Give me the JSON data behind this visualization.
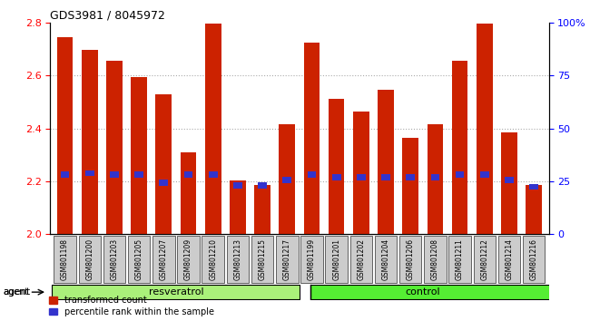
{
  "title": "GDS3981 / 8045972",
  "samples": [
    "GSM801198",
    "GSM801200",
    "GSM801203",
    "GSM801205",
    "GSM801207",
    "GSM801209",
    "GSM801210",
    "GSM801213",
    "GSM801215",
    "GSM801217",
    "GSM801199",
    "GSM801201",
    "GSM801202",
    "GSM801204",
    "GSM801206",
    "GSM801208",
    "GSM801211",
    "GSM801212",
    "GSM801214",
    "GSM801216"
  ],
  "red_values": [
    2.745,
    2.695,
    2.655,
    2.595,
    2.53,
    2.31,
    2.795,
    2.205,
    2.185,
    2.415,
    2.725,
    2.51,
    2.465,
    2.545,
    2.365,
    2.415,
    2.655,
    2.795,
    2.385,
    2.185
  ],
  "blue_values": [
    2.225,
    2.23,
    2.225,
    2.225,
    2.195,
    2.225,
    2.225,
    2.185,
    2.185,
    2.205,
    2.225,
    2.215,
    2.215,
    2.215,
    2.215,
    2.215,
    2.225,
    2.225,
    2.205,
    2.18
  ],
  "resveratrol_count": 10,
  "control_count": 10,
  "ymin": 2.0,
  "ymax": 2.8,
  "yticks": [
    2.0,
    2.2,
    2.4,
    2.6,
    2.8
  ],
  "right_yticks": [
    0,
    25,
    50,
    75,
    100
  ],
  "right_ytick_labels": [
    "0",
    "25",
    "50",
    "75",
    "100%"
  ],
  "bar_color": "#cc2200",
  "blue_color": "#3333cc",
  "resveratrol_bg": "#aaf07a",
  "control_bg": "#55ee33",
  "tick_bg": "#cccccc",
  "agent_label": "agent",
  "resveratrol_label": "resveratrol",
  "control_label": "control",
  "legend_red": "transformed count",
  "legend_blue": "percentile rank within the sample",
  "grid_color": "#aaaaaa",
  "bg_color": "#ffffff"
}
